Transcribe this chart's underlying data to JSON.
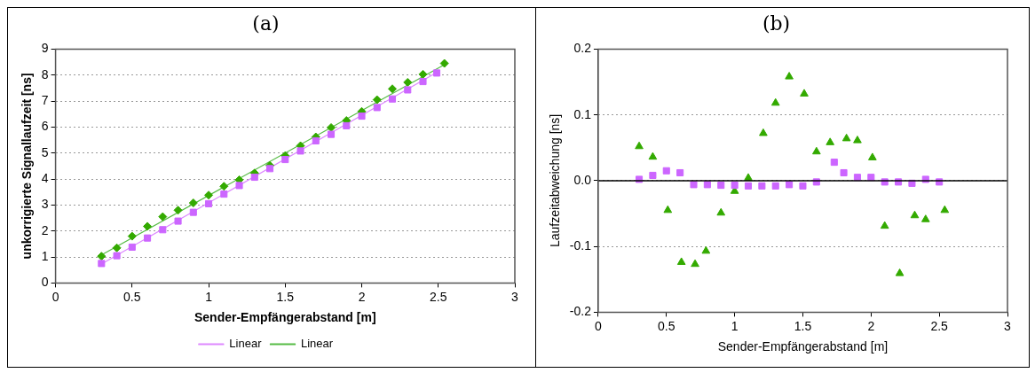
{
  "chart_data": [
    {
      "type": "scatter",
      "title": "(a)",
      "xlabel": "Sender-Empfängerabstand [m]",
      "ylabel": "unkorrigierte Signallaufzeit [ns]",
      "xlim": [
        0,
        3
      ],
      "xticks": [
        0,
        0.5,
        1,
        1.5,
        2,
        2.5,
        3
      ],
      "ylim": [
        0,
        9
      ],
      "yticks": [
        0,
        1,
        2,
        3,
        4,
        5,
        6,
        7,
        8,
        9
      ],
      "grid": "y",
      "legend": "bottom",
      "series": [
        {
          "color": "#cc66ff",
          "marker": "square",
          "x": [
            0.3,
            0.4,
            0.5,
            0.6,
            0.7,
            0.8,
            0.9,
            1.0,
            1.1,
            1.2,
            1.3,
            1.4,
            1.5,
            1.6,
            1.7,
            1.8,
            1.9,
            2.0,
            2.1,
            2.2,
            2.3,
            2.4,
            2.49
          ],
          "values": [
            0.75,
            1.05,
            1.38,
            1.73,
            2.05,
            2.38,
            2.72,
            3.05,
            3.42,
            3.75,
            4.07,
            4.4,
            4.75,
            5.08,
            5.47,
            5.72,
            6.05,
            6.42,
            6.75,
            7.08,
            7.43,
            7.75,
            8.08
          ]
        },
        {
          "color": "#33aa00",
          "marker": "diamond",
          "x": [
            0.3,
            0.4,
            0.5,
            0.6,
            0.7,
            0.8,
            0.9,
            1.0,
            1.1,
            1.2,
            1.3,
            1.4,
            1.5,
            1.6,
            1.7,
            1.8,
            1.9,
            2.0,
            2.1,
            2.2,
            2.3,
            2.4,
            2.54
          ],
          "values": [
            1.03,
            1.35,
            1.8,
            2.18,
            2.55,
            2.8,
            3.08,
            3.38,
            3.72,
            3.97,
            4.23,
            4.52,
            4.9,
            5.28,
            5.62,
            5.98,
            6.25,
            6.6,
            7.05,
            7.47,
            7.72,
            8.03,
            8.45
          ]
        },
        {
          "type": "line",
          "name": "Linear",
          "color": "#dd88ff",
          "marker": "none",
          "x": [
            0.3,
            2.49
          ],
          "values": [
            0.73,
            8.1
          ]
        },
        {
          "type": "line",
          "name": "Linear",
          "color": "#55bb44",
          "marker": "none",
          "x": [
            0.3,
            2.54
          ],
          "values": [
            1.08,
            8.4
          ]
        }
      ]
    },
    {
      "type": "scatter",
      "title": "(b)",
      "xlabel": "Sender-Empfängerabstand [m]",
      "ylabel": "Laufzeitabweichung [ns]",
      "xlim": [
        0,
        3
      ],
      "xticks": [
        0,
        0.5,
        1,
        1.5,
        2,
        2.5,
        3
      ],
      "ylim": [
        -0.2,
        0.2
      ],
      "yticks": [
        {
          "value": -0.2,
          "label": "-0.2"
        },
        {
          "value": -0.1,
          "label": "-0.1"
        },
        {
          "value": 0,
          "label": "0.0"
        },
        {
          "value": 0.1,
          "label": "0.1"
        },
        {
          "value": 0.2,
          "label": "0.2"
        }
      ],
      "grid": "y",
      "ref_lines": [
        {
          "axis": "y",
          "value": 0,
          "color": "#000000"
        }
      ],
      "series": [
        {
          "color": "#cc66ff",
          "marker": "square",
          "x": [
            0.3,
            0.4,
            0.5,
            0.6,
            0.7,
            0.8,
            0.9,
            1.0,
            1.1,
            1.2,
            1.3,
            1.4,
            1.5,
            1.6,
            1.73,
            1.8,
            1.9,
            2.0,
            2.1,
            2.2,
            2.3,
            2.4,
            2.5
          ],
          "values": [
            0.002,
            0.008,
            0.015,
            0.012,
            -0.006,
            -0.006,
            -0.007,
            -0.007,
            -0.008,
            -0.008,
            -0.008,
            -0.006,
            -0.008,
            -0.002,
            0.028,
            0.012,
            0.005,
            0.005,
            -0.002,
            -0.002,
            -0.004,
            0.002,
            -0.002
          ]
        },
        {
          "color": "#33aa00",
          "marker": "triangle",
          "x": [
            0.3,
            0.4,
            0.51,
            0.61,
            0.71,
            0.79,
            0.9,
            1.0,
            1.1,
            1.21,
            1.3,
            1.4,
            1.51,
            1.6,
            1.7,
            1.82,
            1.9,
            2.01,
            2.1,
            2.21,
            2.32,
            2.4,
            2.54
          ],
          "values": [
            0.052,
            0.036,
            -0.045,
            -0.124,
            -0.127,
            -0.107,
            -0.049,
            -0.016,
            0.004,
            0.072,
            0.118,
            0.158,
            0.132,
            0.044,
            0.058,
            0.064,
            0.061,
            0.035,
            -0.069,
            -0.141,
            -0.053,
            -0.059,
            -0.045
          ]
        }
      ]
    }
  ]
}
